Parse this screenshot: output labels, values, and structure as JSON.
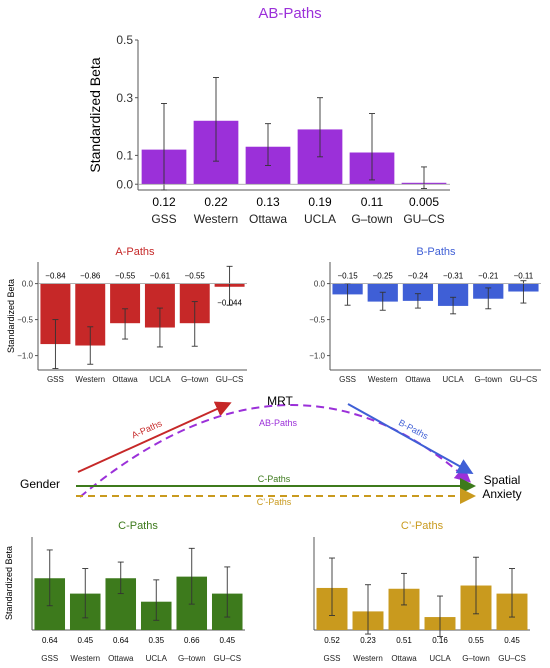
{
  "colors": {
    "ab": "#9b30d9",
    "a": "#c62828",
    "b": "#3f5fd6",
    "c": "#3d7a1c",
    "cprime": "#c99a1e",
    "axis": "#555555",
    "errorbar": "#333333"
  },
  "diagram": {
    "gender": "Gender",
    "mrt": "MRT",
    "spatial_anxiety": [
      "Spatial",
      "Anxiety"
    ],
    "a_label": "A-Paths",
    "ab_label": "AB-Paths",
    "b_label": "B-Paths",
    "c_label": "C-Paths",
    "cprime_label": "C’-Paths"
  },
  "chart_data": [
    {
      "id": "ab",
      "type": "bar",
      "title": "AB-Paths",
      "ylabel": "Standardized Beta",
      "categories": [
        "GSS",
        "Western",
        "Ottawa",
        "UCLA",
        "G–town",
        "GU–CS"
      ],
      "values": [
        0.12,
        0.22,
        0.13,
        0.19,
        0.11,
        0.005
      ],
      "value_labels": [
        "0.12",
        "0.22",
        "0.13",
        "0.19",
        "0.11",
        "0.005"
      ],
      "error_low": [
        -0.02,
        0.08,
        0.065,
        0.095,
        0.015,
        -0.015
      ],
      "error_high": [
        0.28,
        0.37,
        0.21,
        0.3,
        0.245,
        0.06
      ],
      "ylim": [
        -0.02,
        0.5
      ],
      "yticks": [
        0.0,
        0.1,
        0.3,
        0.5
      ],
      "ytick_labels": [
        "0.0",
        "0.1",
        "0.3",
        "0.5"
      ],
      "grid": false
    },
    {
      "id": "a",
      "type": "bar",
      "title": "A-Paths",
      "ylabel": "Standardized Beta",
      "categories": [
        "GSS",
        "Western",
        "Ottawa",
        "UCLA",
        "G–town",
        "GU–CS"
      ],
      "values": [
        -0.84,
        -0.86,
        -0.55,
        -0.61,
        -0.55,
        -0.044
      ],
      "value_labels": [
        "−0.84",
        "−0.86",
        "−0.55",
        "−0.61",
        "−0.55",
        "−0.044"
      ],
      "error_low": [
        -1.18,
        -1.12,
        -0.77,
        -0.88,
        -0.87,
        -0.3
      ],
      "error_high": [
        -0.5,
        -0.6,
        -0.35,
        -0.34,
        -0.25,
        0.24
      ],
      "ylim": [
        -1.2,
        0.3
      ],
      "yticks": [
        0.0,
        -0.5,
        -1.0
      ],
      "ytick_labels": [
        "0.0",
        "−0.5",
        "−1.0"
      ],
      "grid": false
    },
    {
      "id": "b",
      "type": "bar",
      "title": "B-Paths",
      "ylabel": "",
      "categories": [
        "GSS",
        "Western",
        "Ottawa",
        "UCLA",
        "G–town",
        "GU–CS"
      ],
      "values": [
        -0.15,
        -0.25,
        -0.24,
        -0.31,
        -0.21,
        -0.11
      ],
      "value_labels": [
        "−0.15",
        "−0.25",
        "−0.24",
        "−0.31",
        "−0.21",
        "−0.11"
      ],
      "error_low": [
        -0.3,
        -0.37,
        -0.34,
        -0.42,
        -0.35,
        -0.27
      ],
      "error_high": [
        0.0,
        -0.12,
        -0.14,
        -0.19,
        -0.06,
        0.04
      ],
      "ylim": [
        -1.2,
        0.3
      ],
      "yticks": [
        0.0,
        -0.5,
        -1.0
      ],
      "ytick_labels": [
        "0.0",
        "−0.5",
        "−1.0"
      ],
      "grid": false
    },
    {
      "id": "c",
      "type": "bar",
      "title": "C-Paths",
      "ylabel": "Standardized Beta",
      "categories": [
        "GSS",
        "Western",
        "Ottawa",
        "UCLA",
        "G–town",
        "GU–CS"
      ],
      "values": [
        0.64,
        0.45,
        0.64,
        0.35,
        0.66,
        0.45
      ],
      "value_labels": [
        "0.64",
        "0.45",
        "0.64",
        "0.35",
        "0.66",
        "0.45"
      ],
      "error_low": [
        0.3,
        0.15,
        0.45,
        0.12,
        0.32,
        0.16
      ],
      "error_high": [
        0.99,
        0.76,
        0.84,
        0.62,
        1.01,
        0.78
      ],
      "ylim": [
        0,
        1.15
      ],
      "yticks": [],
      "ytick_labels": [],
      "grid": false
    },
    {
      "id": "cprime",
      "type": "bar",
      "title": "C’-Paths",
      "ylabel": "",
      "categories": [
        "GSS",
        "Western",
        "Ottawa",
        "UCLA",
        "G–town",
        "GU–CS"
      ],
      "values": [
        0.52,
        0.23,
        0.51,
        0.16,
        0.55,
        0.45
      ],
      "value_labels": [
        "0.52",
        "0.23",
        "0.51",
        "0.16",
        "0.55",
        "0.45"
      ],
      "error_low": [
        0.18,
        -0.05,
        0.31,
        -0.08,
        0.2,
        0.16
      ],
      "error_high": [
        0.89,
        0.56,
        0.7,
        0.42,
        0.9,
        0.76
      ],
      "ylim": [
        0,
        1.15
      ],
      "yticks": [],
      "ytick_labels": [],
      "grid": false
    }
  ]
}
